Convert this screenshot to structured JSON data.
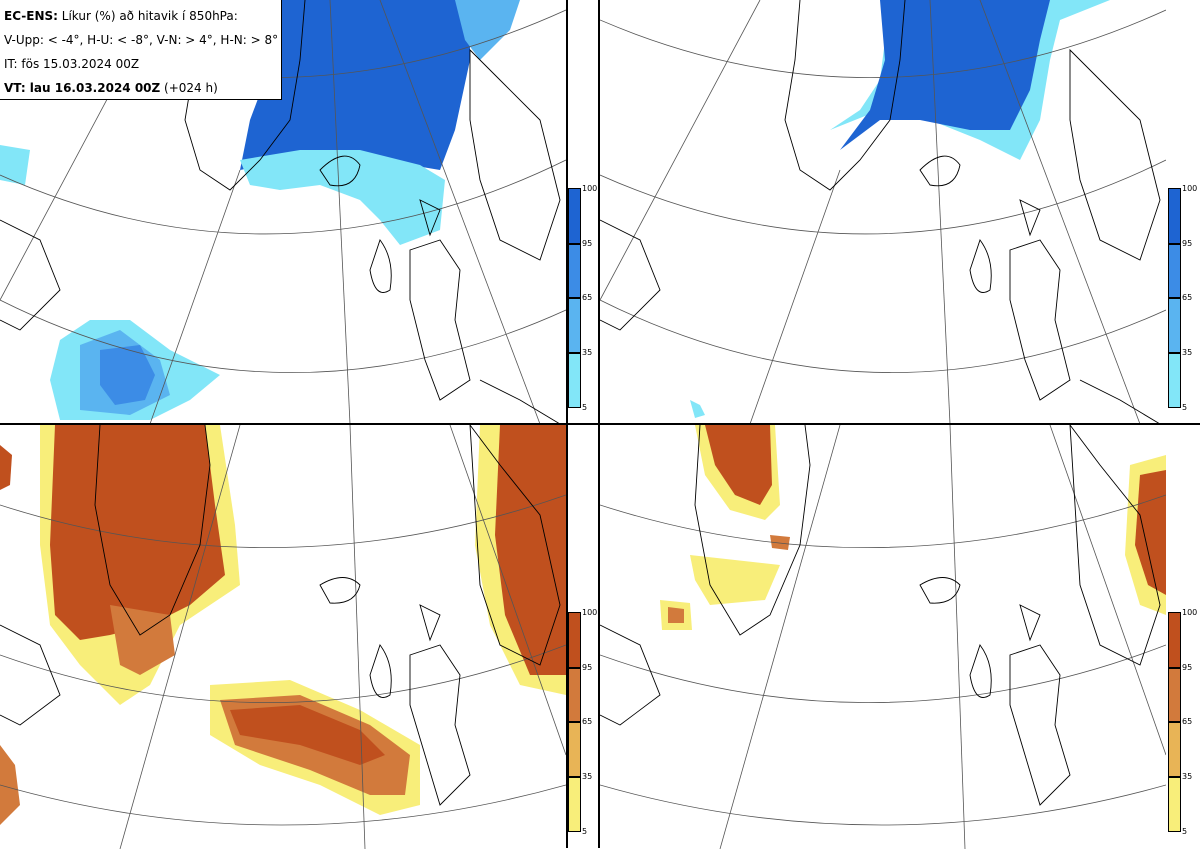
{
  "legend": {
    "line1_bold": "EC-ENS:",
    "line1_rest": "Líkur (%) að hitavik í 850hPa:",
    "line2": "V-Upp: < -4°, H-U: < -8°, V-N: > 4°, H-N: > 8°",
    "line3": "IT: fös 15.03.2024 00Z",
    "line4_bold": "VT: lau 16.03.2024 00Z",
    "line4_rest": "(+024 h)"
  },
  "colorbars": {
    "ticks": [
      "100",
      "95",
      "65",
      "35",
      "5"
    ],
    "cold_colors": [
      "#1e64d2",
      "#3c8ce6",
      "#5ab4f0",
      "#82e6f8",
      "#ffffff"
    ],
    "warm_colors": [
      "#c0501e",
      "#d27a3c",
      "#e8b456",
      "#f8ee7a",
      "#ffffff"
    ]
  },
  "panels": [
    {
      "id": "top-left",
      "variable": "V-Upp",
      "palette": "cold"
    },
    {
      "id": "top-right",
      "variable": "H-U",
      "palette": "cold"
    },
    {
      "id": "bottom-left",
      "variable": "V-N",
      "palette": "warm"
    },
    {
      "id": "bottom-right",
      "variable": "H-N",
      "palette": "warm"
    }
  ]
}
